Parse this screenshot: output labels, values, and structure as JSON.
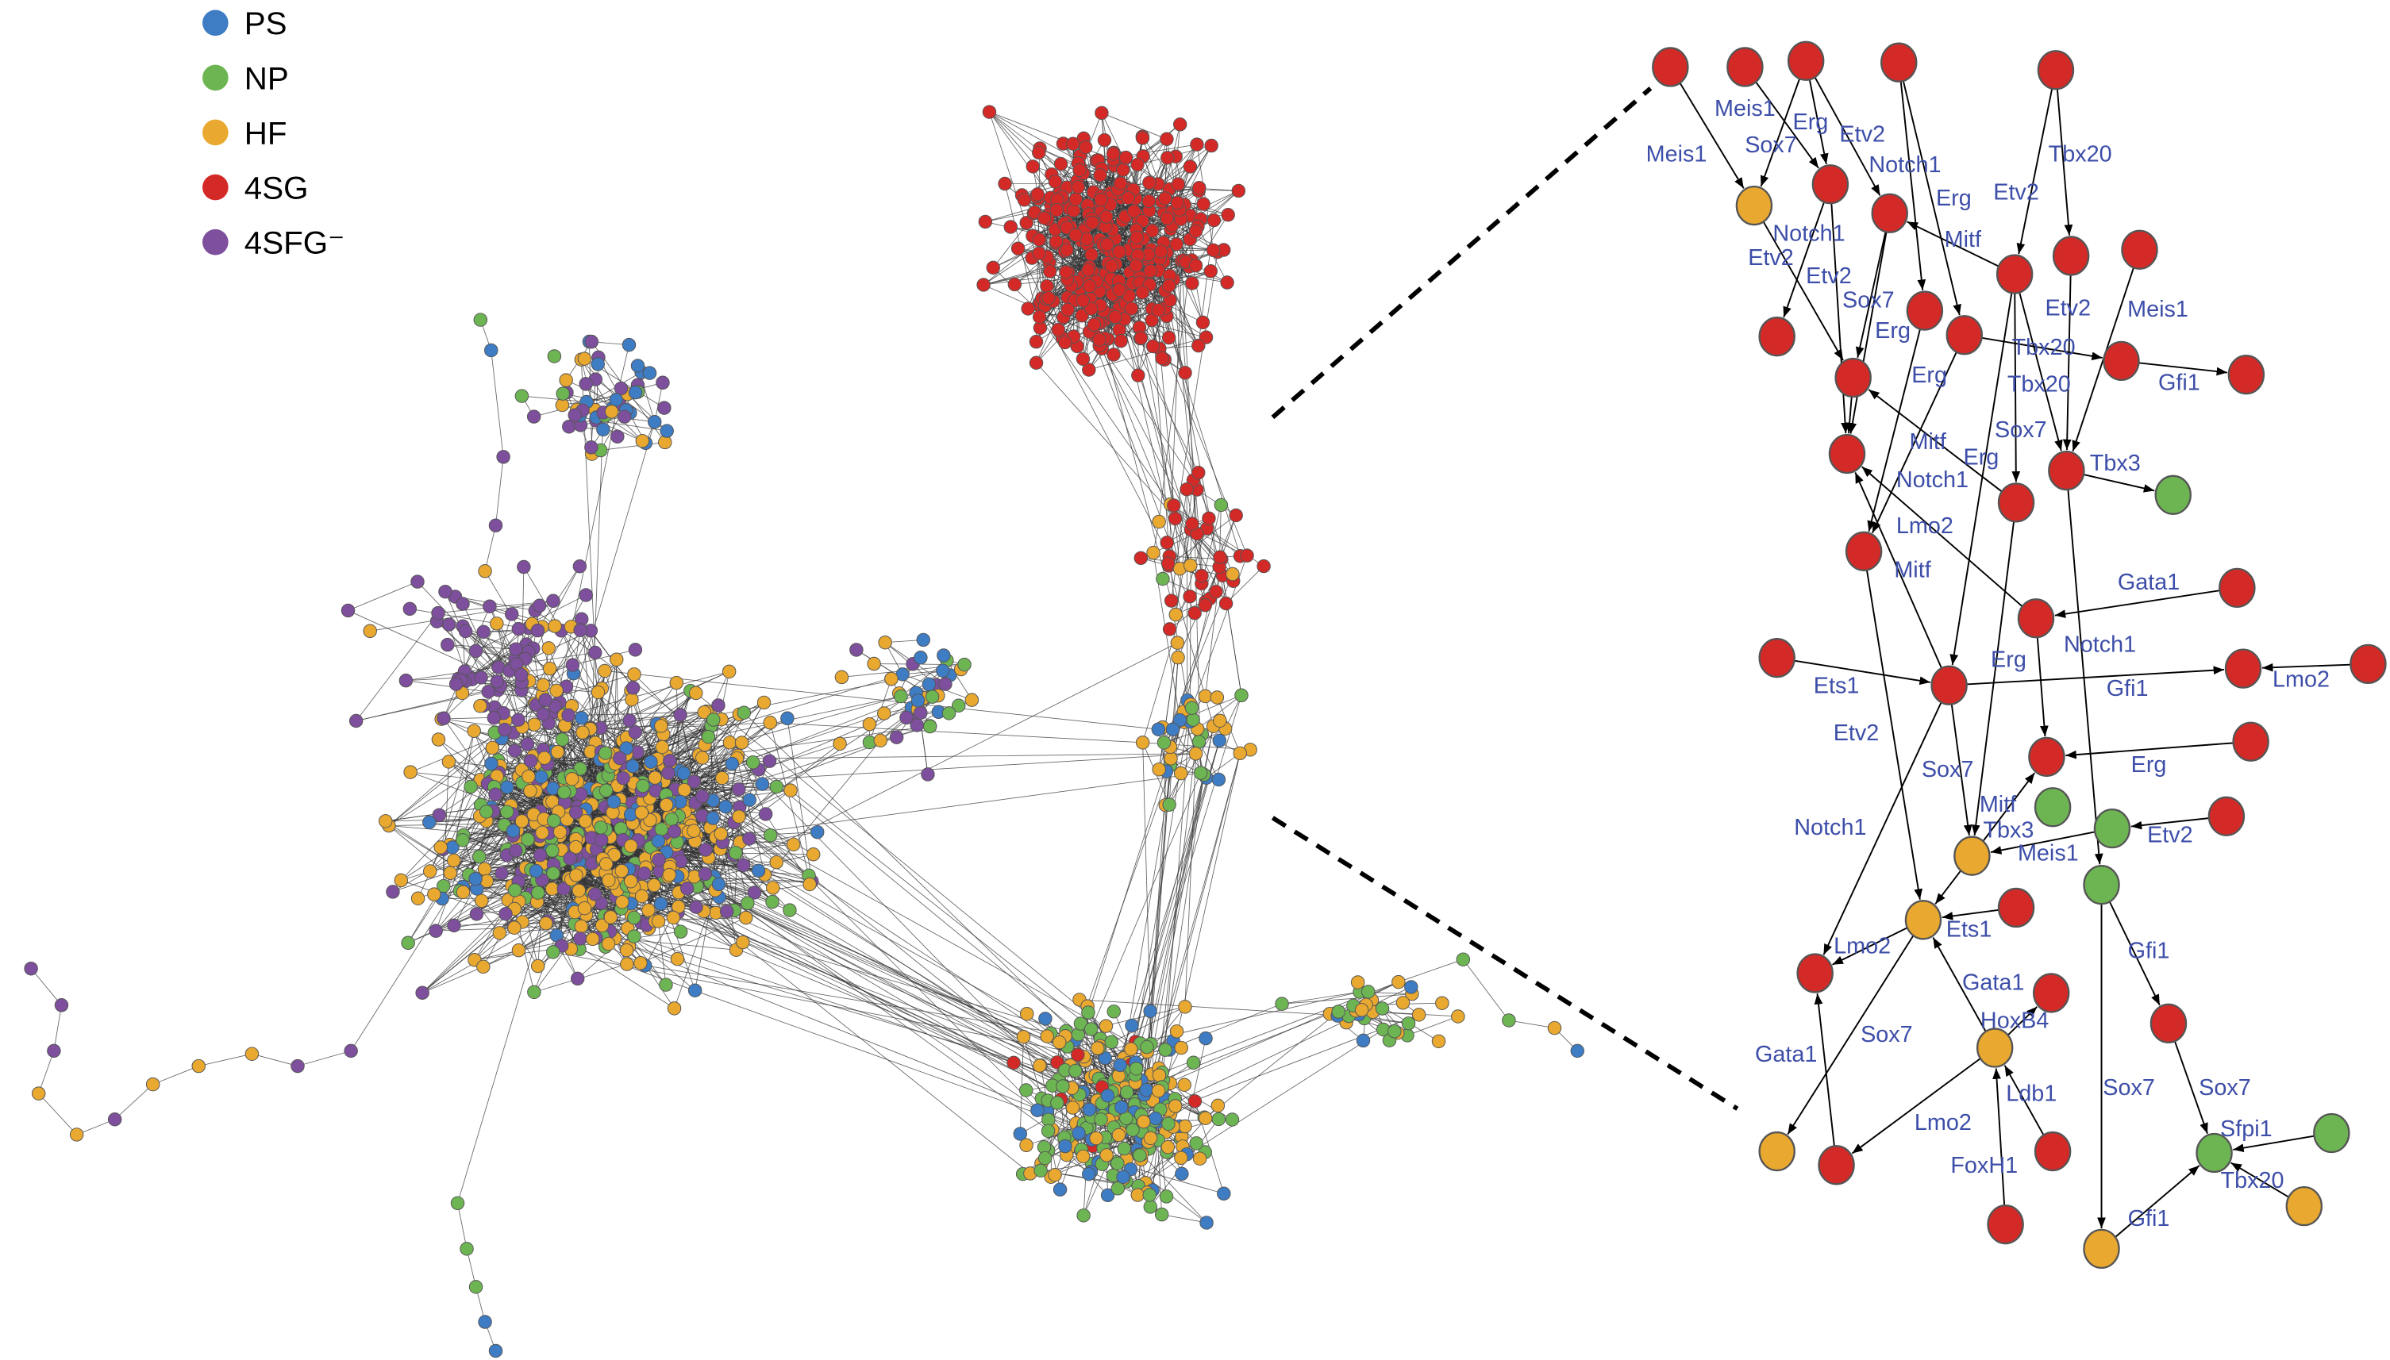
{
  "legend": [
    {
      "key": "PS",
      "label": "PS",
      "color": "#3e7cc4"
    },
    {
      "key": "NP",
      "label": "NP",
      "color": "#6db553"
    },
    {
      "key": "HF",
      "label": "HF",
      "color": "#e9a82f"
    },
    {
      "key": "4SG",
      "label": "4SG",
      "color": "#d42a27"
    },
    {
      "key": "4SFG",
      "label": "4SFG⁻",
      "color": "#7d4f9c"
    }
  ],
  "edge_label_color": "#3d4ea8",
  "detail_network": {
    "nodes": [
      {
        "id": "n1",
        "type": "4SG"
      },
      {
        "id": "n2",
        "type": "4SG"
      },
      {
        "id": "n3",
        "type": "4SG"
      },
      {
        "id": "n4",
        "type": "4SG"
      },
      {
        "id": "n5",
        "type": "4SG"
      },
      {
        "id": "n6",
        "type": "HF"
      },
      {
        "id": "n7",
        "type": "4SG"
      },
      {
        "id": "n8",
        "type": "4SG"
      },
      {
        "id": "n9",
        "type": "4SG"
      },
      {
        "id": "n10",
        "type": "4SG"
      },
      {
        "id": "n11",
        "type": "4SG"
      },
      {
        "id": "n12",
        "type": "4SG"
      },
      {
        "id": "n13",
        "type": "4SG"
      },
      {
        "id": "n14",
        "type": "4SG"
      },
      {
        "id": "n15",
        "type": "4SG"
      },
      {
        "id": "n16",
        "type": "4SG"
      },
      {
        "id": "n17",
        "type": "4SG"
      },
      {
        "id": "n18",
        "type": "4SG"
      },
      {
        "id": "n19",
        "type": "4SG"
      },
      {
        "id": "n20",
        "type": "NP"
      },
      {
        "id": "n21",
        "type": "4SG"
      },
      {
        "id": "n22",
        "type": "4SG"
      },
      {
        "id": "n23",
        "type": "4SG"
      },
      {
        "id": "n24",
        "type": "4SG"
      },
      {
        "id": "n25",
        "type": "4SG"
      },
      {
        "id": "n26",
        "type": "4SG"
      },
      {
        "id": "n27",
        "type": "4SG"
      },
      {
        "id": "n28",
        "type": "4SG"
      },
      {
        "id": "n29",
        "type": "4SG"
      },
      {
        "id": "n30",
        "type": "4SG"
      },
      {
        "id": "n31",
        "type": "NP"
      },
      {
        "id": "n32",
        "type": "NP"
      },
      {
        "id": "n33",
        "type": "4SG"
      },
      {
        "id": "n34",
        "type": "HF"
      },
      {
        "id": "n35",
        "type": "NP"
      },
      {
        "id": "n36",
        "type": "HF"
      },
      {
        "id": "n37",
        "type": "4SG"
      },
      {
        "id": "n38",
        "type": "4SG"
      },
      {
        "id": "n39",
        "type": "4SG"
      },
      {
        "id": "n40",
        "type": "HF"
      },
      {
        "id": "n41",
        "type": "4SG"
      },
      {
        "id": "n42",
        "type": "4SG"
      },
      {
        "id": "n43",
        "type": "HF"
      },
      {
        "id": "n44",
        "type": "4SG"
      },
      {
        "id": "n45",
        "type": "NP"
      },
      {
        "id": "n46",
        "type": "NP"
      },
      {
        "id": "n47",
        "type": "4SG"
      },
      {
        "id": "n48",
        "type": "HF"
      },
      {
        "id": "n49",
        "type": "HF"
      }
    ],
    "edges": [
      {
        "from": "n1",
        "to": "n6",
        "label": "Meis1"
      },
      {
        "from": "n3",
        "to": "n6",
        "label": "Sox7"
      },
      {
        "from": "n2",
        "to": "n7",
        "label": "Meis1"
      },
      {
        "from": "n3",
        "to": "n7",
        "label": "Erg"
      },
      {
        "from": "n3",
        "to": "n8",
        "label": "Etv2"
      },
      {
        "from": "n4",
        "to": "n13",
        "label": "Notch1"
      },
      {
        "from": "n4",
        "to": "n14",
        "label": "Erg"
      },
      {
        "from": "n5",
        "to": "n9",
        "label": "Etv2"
      },
      {
        "from": "n5",
        "to": "n10",
        "label": "Tbx20"
      },
      {
        "from": "n9",
        "to": "n8",
        "label": "Mitf"
      },
      {
        "from": "n6",
        "to": "n17",
        "label": "Etv2"
      },
      {
        "from": "n7",
        "to": "n12",
        "label": "Notch1"
      },
      {
        "from": "n7",
        "to": "n18",
        "label": "Etv2"
      },
      {
        "from": "n8",
        "to": "n17",
        "label": "Sox7"
      },
      {
        "from": "n8",
        "to": "n18",
        "label": "Erg"
      },
      {
        "from": "n17",
        "to": "n18",
        "label": "Erg"
      },
      {
        "from": "n14",
        "to": "n15",
        "label": "Tbx20"
      },
      {
        "from": "n15",
        "to": "n16",
        "label": "Gfi1"
      },
      {
        "from": "n9",
        "to": "n19",
        "label": "Tbx20"
      },
      {
        "from": "n10",
        "to": "n19",
        "label": "Etv2"
      },
      {
        "from": "n11",
        "to": "n19",
        "label": "Meis1"
      },
      {
        "from": "n9",
        "to": "n21",
        "label": "Sox7"
      },
      {
        "from": "n19",
        "to": "n20",
        "label": "Tbx3"
      },
      {
        "from": "n14",
        "to": "n22",
        "label": "Mitf"
      },
      {
        "from": "n21",
        "to": "n17",
        "label": "Erg"
      },
      {
        "from": "n24",
        "to": "n18",
        "label": "Notch1"
      },
      {
        "from": "n13",
        "to": "n22",
        "label": "Lmo2"
      },
      {
        "from": "n26",
        "to": "n18",
        "label": "Mitf"
      },
      {
        "from": "n22",
        "to": "n36",
        "label": "Etv2"
      },
      {
        "from": "n9",
        "to": "n26",
        "label": "Erg"
      },
      {
        "from": "n23",
        "to": "n24",
        "label": "Gata1"
      },
      {
        "from": "n24",
        "to": "n29",
        "label": "Notch1"
      },
      {
        "from": "n25",
        "to": "n26",
        "label": "Ets1"
      },
      {
        "from": "n26",
        "to": "n27",
        "label": "Gfi1"
      },
      {
        "from": "n28",
        "to": "n27",
        "label": "Lmo2"
      },
      {
        "from": "n26",
        "to": "n34",
        "label": "Sox7"
      },
      {
        "from": "n26",
        "to": "n38",
        "label": "Notch1"
      },
      {
        "from": "n30",
        "to": "n29",
        "label": "Erg"
      },
      {
        "from": "n34",
        "to": "n29",
        "label": "Mitf"
      },
      {
        "from": "n21",
        "to": "n34",
        "label": "Tbx3"
      },
      {
        "from": "n32",
        "to": "n34",
        "label": "Meis1"
      },
      {
        "from": "n33",
        "to": "n32",
        "label": "Etv2"
      },
      {
        "from": "n19",
        "to": "n35",
        "label": ""
      },
      {
        "from": "n34",
        "to": "n36",
        "label": ""
      },
      {
        "from": "n37",
        "to": "n36",
        "label": "Ets1"
      },
      {
        "from": "n36",
        "to": "n38",
        "label": "Lmo2"
      },
      {
        "from": "n40",
        "to": "n36",
        "label": "Gata1"
      },
      {
        "from": "n40",
        "to": "n39",
        "label": "HoxB4"
      },
      {
        "from": "n44",
        "to": "n38",
        "label": "Gata1"
      },
      {
        "from": "n36",
        "to": "n43",
        "label": "Sox7"
      },
      {
        "from": "n40",
        "to": "n44",
        "label": "Lmo2"
      },
      {
        "from": "n47",
        "to": "n40",
        "label": "FoxH1"
      },
      {
        "from": "n42",
        "to": "n40",
        "label": "Ldb1"
      },
      {
        "from": "n35",
        "to": "n41",
        "label": "Gfi1"
      },
      {
        "from": "n35",
        "to": "n49",
        "label": "Sox7"
      },
      {
        "from": "n41",
        "to": "n46",
        "label": "Sox7"
      },
      {
        "from": "n45",
        "to": "n46",
        "label": "Sfpi1"
      },
      {
        "from": "n48",
        "to": "n46",
        "label": "Tbx20"
      },
      {
        "from": "n49",
        "to": "n46",
        "label": "Gfi1"
      }
    ]
  }
}
